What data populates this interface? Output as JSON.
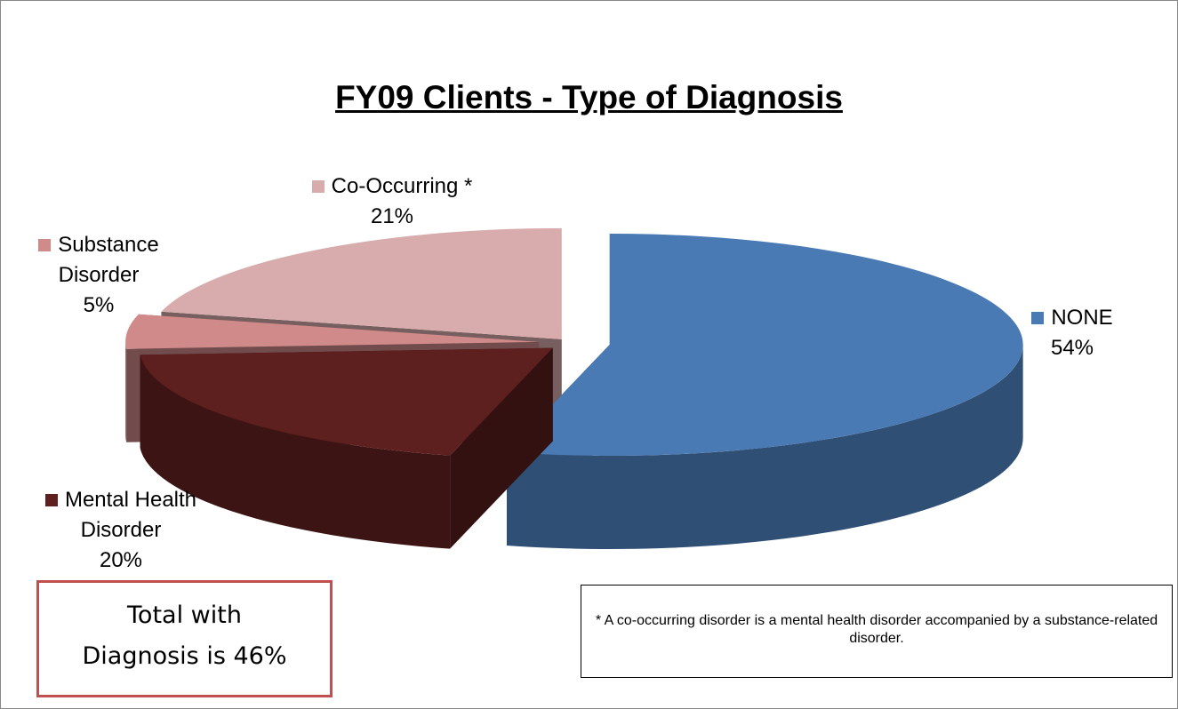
{
  "chart_data": {
    "type": "pie",
    "title": "FY09 Clients - Type of Diagnosis",
    "categories": [
      "NONE",
      "Mental Health Disorder",
      "Substance Disorder",
      "Co-Occurring *"
    ],
    "values": [
      54,
      20,
      5,
      21
    ],
    "value_labels": [
      "54%",
      "20%",
      "5%",
      "21%"
    ],
    "colors": [
      "#4a7ab4",
      "#5e1f1f",
      "#d08a8a",
      "#d8acac"
    ],
    "annotations": [
      "Total with Diagnosis is 46%",
      "* A co-occurring disorder is a mental health disorder accompanied by a substance-related disorder."
    ]
  }
}
